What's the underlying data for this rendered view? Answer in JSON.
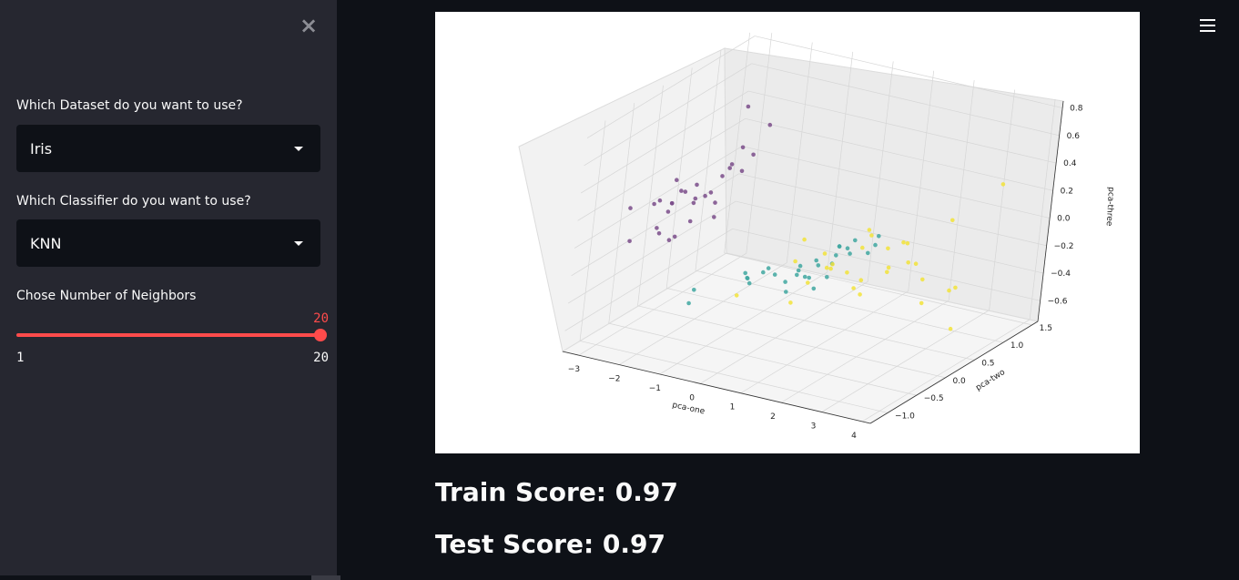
{
  "sidebar": {
    "close_icon": "close-icon",
    "dataset_label": "Which Dataset do you want to use?",
    "dataset_value": "Iris",
    "classifier_label": "Which Classifier do you want to use?",
    "classifier_value": "KNN",
    "slider_label": "Chose Number of Neighbors",
    "slider_value": "20",
    "slider_min": "1",
    "slider_max": "20"
  },
  "header": {
    "menu_icon": "hamburger-menu-icon"
  },
  "main": {
    "train_score": "Train Score: 0.97",
    "test_score": "Test Score: 0.97"
  },
  "colors": {
    "accent": "#ff4b4b",
    "sidebar_bg": "#262730",
    "main_bg": "#0e1117",
    "class0": "#7a4c8a",
    "class1": "#3fa7a0",
    "class2": "#f2e33a"
  },
  "chart_data": {
    "type": "scatter",
    "projection": "3d",
    "title": "",
    "xlabel": "pca-one",
    "ylabel": "pca-two",
    "zlabel": "pca-three",
    "xticks": [
      "−3",
      "−2",
      "−1",
      "0",
      "1",
      "2",
      "3",
      "4"
    ],
    "yticks": [
      "−1.0",
      "−0.5",
      "0.0",
      "0.5",
      "1.0",
      "1.5"
    ],
    "zticks": [
      "0.8",
      "0.6",
      "0.4",
      "0.2",
      "0.0",
      "−0.2",
      "−0.4",
      "−0.6"
    ],
    "series": [
      {
        "points": [
          [
            -2.7,
            0.3,
            0.1
          ],
          [
            -2.9,
            -0.2,
            0.1
          ],
          [
            -2.8,
            -0.1,
            -0.0
          ],
          [
            -2.7,
            -0.3,
            -0.1
          ],
          [
            -2.6,
            0.4,
            0.0
          ],
          [
            -2.3,
            0.8,
            0.1
          ],
          [
            -2.9,
            -0.2,
            -0.1
          ],
          [
            -2.6,
            0.2,
            0.0
          ],
          [
            -3.0,
            -0.6,
            -0.1
          ],
          [
            -2.8,
            0.1,
            0.1
          ],
          [
            -2.5,
            0.6,
            0.1
          ],
          [
            -2.7,
            -0.1,
            -0.2
          ],
          [
            -2.9,
            -0.3,
            0.1
          ],
          [
            -3.2,
            -0.5,
            0.1
          ],
          [
            -2.6,
            1.0,
            0.2
          ],
          [
            -2.4,
            1.3,
            0.3
          ],
          [
            -2.6,
            0.8,
            0.1
          ],
          [
            -2.7,
            0.3,
            0.0
          ],
          [
            -2.2,
            0.9,
            0.2
          ],
          [
            -2.6,
            0.6,
            -0.1
          ],
          [
            -2.3,
            0.6,
            0.2
          ],
          [
            -2.6,
            0.5,
            -0.0
          ],
          [
            -3.2,
            0.3,
            0.1
          ],
          [
            -2.5,
            0.1,
            -0.1
          ],
          [
            -2.7,
            0.0,
            -0.2
          ],
          [
            -2.6,
            -0.2,
            0.1
          ],
          [
            -2.7,
            0.1,
            0.1
          ],
          [
            -2.2,
            0.7,
            0.6
          ],
          [
            -2.2,
            0.3,
            -0.1
          ],
          [
            -2.6,
            -0.2,
            0.1
          ]
        ],
        "color_key": "class0"
      },
      {
        "points": [
          [
            1.3,
            0.7,
            -0.1
          ],
          [
            0.9,
            0.3,
            -0.1
          ],
          [
            1.5,
            0.5,
            -0.1
          ],
          [
            0.2,
            -0.8,
            -0.1
          ],
          [
            1.1,
            0.1,
            -0.1
          ],
          [
            0.6,
            -0.4,
            -0.2
          ],
          [
            1.1,
            0.3,
            -0.1
          ],
          [
            -0.8,
            -1.0,
            -0.2
          ],
          [
            0.9,
            0.2,
            -0.2
          ],
          [
            0.0,
            -0.7,
            -0.1
          ],
          [
            -0.5,
            -1.3,
            -0.2
          ],
          [
            0.5,
            -0.1,
            -0.2
          ],
          [
            0.3,
            -0.6,
            -0.1
          ],
          [
            0.9,
            -0.1,
            -0.1
          ],
          [
            -0.1,
            -0.2,
            -0.2
          ],
          [
            1.0,
            0.5,
            -0.1
          ],
          [
            0.6,
            -0.2,
            -0.2
          ],
          [
            0.2,
            -0.3,
            -0.2
          ],
          [
            0.9,
            -0.6,
            -0.2
          ],
          [
            0.0,
            -0.6,
            -0.2
          ],
          [
            1.2,
            -0.1,
            -0.2
          ],
          [
            0.4,
            0.0,
            -0.2
          ],
          [
            1.3,
            -0.4,
            -0.2
          ],
          [
            0.9,
            -0.2,
            -0.2
          ],
          [
            0.7,
            0.1,
            -0.2
          ],
          [
            0.9,
            0.3,
            -0.1
          ],
          [
            1.3,
            0.2,
            -0.1
          ],
          [
            1.6,
            0.3,
            -0.1
          ],
          [
            0.8,
            -0.2,
            -0.2
          ],
          [
            -0.2,
            -0.5,
            -0.2
          ]
        ],
        "color_key": "class1"
      },
      {
        "points": [
          [
            2.5,
            0.0,
            -0.1
          ],
          [
            1.4,
            -0.6,
            -0.1
          ],
          [
            2.6,
            0.3,
            -0.1
          ],
          [
            2.0,
            -0.2,
            -0.2
          ],
          [
            2.4,
            0.1,
            -0.1
          ],
          [
            3.4,
            0.5,
            -0.3
          ],
          [
            0.5,
            -1.2,
            -0.1
          ],
          [
            2.9,
            0.4,
            -0.4
          ],
          [
            2.3,
            -0.3,
            -0.2
          ],
          [
            2.9,
            0.8,
            0.1
          ],
          [
            1.7,
            0.2,
            0.1
          ],
          [
            1.8,
            -0.2,
            -0.1
          ],
          [
            2.2,
            0.2,
            0.0
          ],
          [
            1.3,
            -0.8,
            0.1
          ],
          [
            1.6,
            -0.5,
            0.1
          ],
          [
            1.9,
            0.1,
            0.1
          ],
          [
            1.9,
            0.0,
            -0.2
          ],
          [
            3.5,
            1.2,
            0.3
          ],
          [
            3.8,
            0.3,
            -0.5
          ],
          [
            1.3,
            -0.8,
            -0.2
          ],
          [
            2.4,
            0.4,
            0.0
          ],
          [
            1.2,
            -0.6,
            0.2
          ],
          [
            3.8,
            0.3,
            -0.2
          ],
          [
            1.4,
            -0.2,
            -0.1
          ],
          [
            2.3,
            0.4,
            0.0
          ],
          [
            2.6,
            0.6,
            -0.3
          ],
          [
            1.3,
            -0.2,
            -0.1
          ],
          [
            1.3,
            -0.1,
            -0.1
          ],
          [
            2.1,
            -0.2,
            0.1
          ],
          [
            2.4,
            0.6,
            -0.2
          ]
        ],
        "color_key": "class2"
      }
    ]
  }
}
